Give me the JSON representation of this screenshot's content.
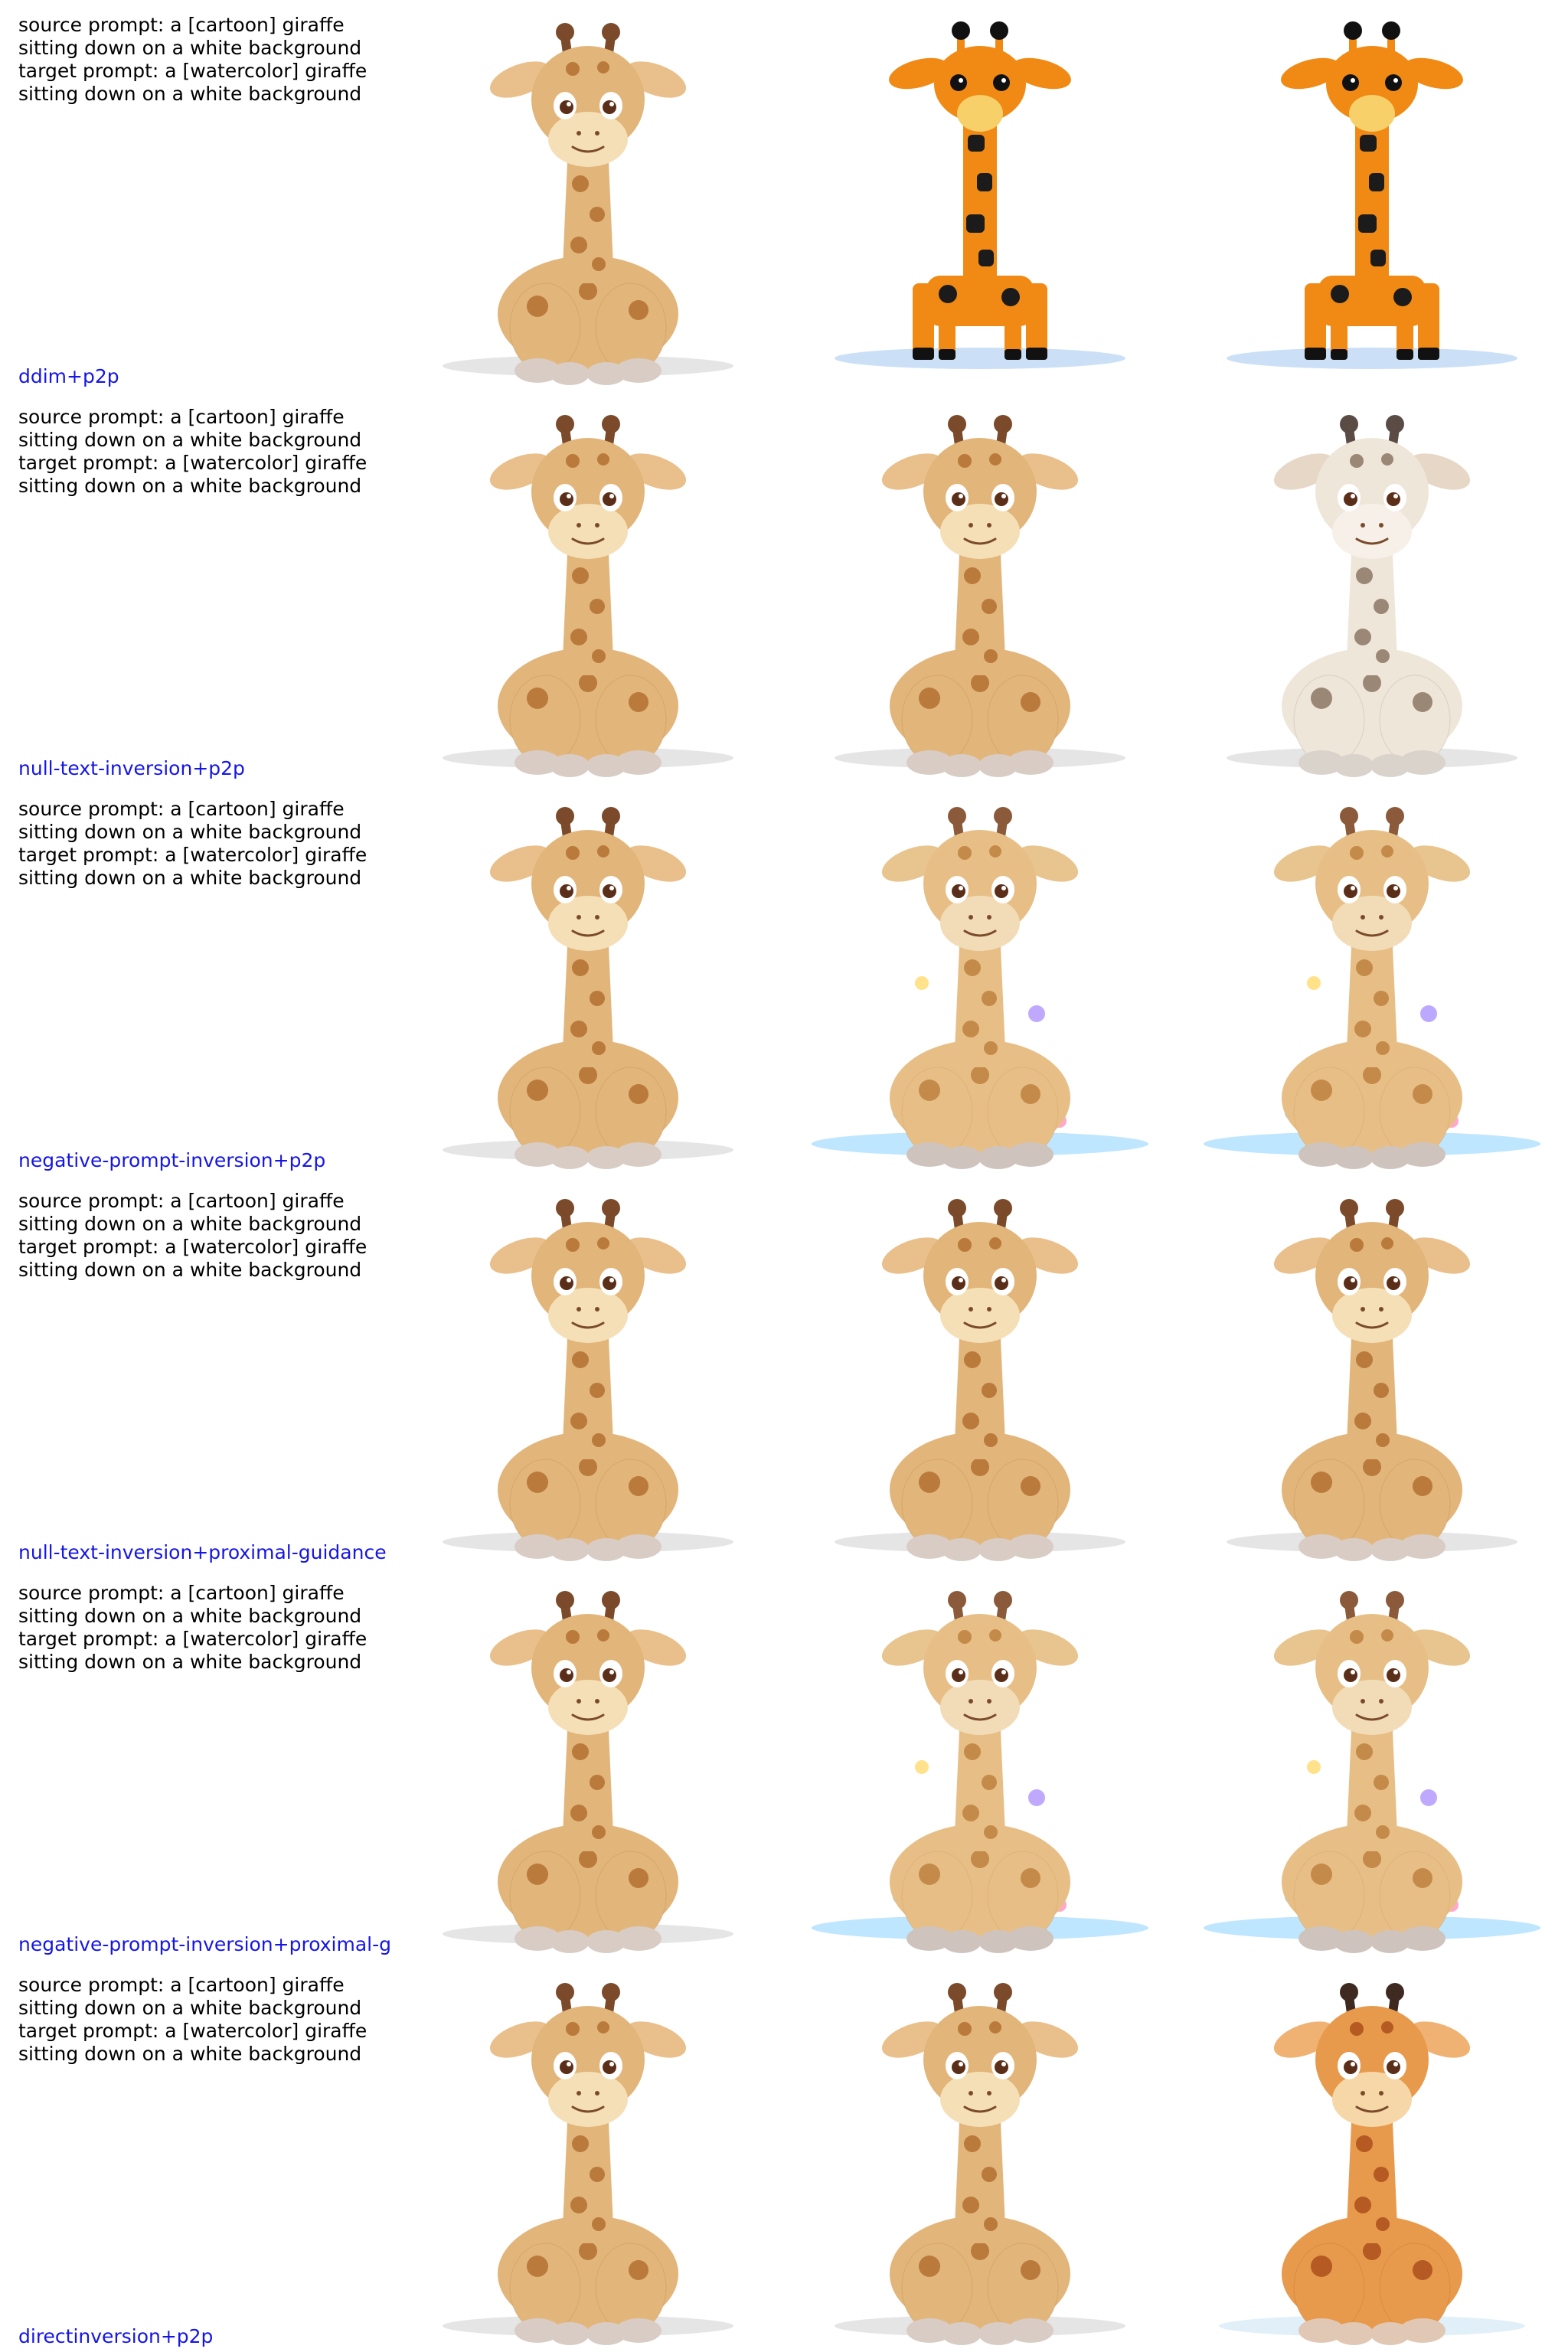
{
  "rows": [
    {
      "prompt": "source prompt: a [cartoon] giraffe\nsitting down on a white background\ntarget prompt: a [watercolor] giraffe\nsitting down on a white background",
      "method": "ddim+p2p",
      "styles": [
        "cartoon",
        "flat",
        "flat"
      ]
    },
    {
      "prompt": "source prompt: a [cartoon] giraffe\nsitting down on a white background\ntarget prompt: a [watercolor] giraffe\nsitting down on a white background",
      "method": "null-text-inversion+p2p",
      "styles": [
        "cartoon",
        "cartoon",
        "sketch"
      ]
    },
    {
      "prompt": "source prompt: a [cartoon] giraffe\nsitting down on a white background\ntarget prompt: a [watercolor] giraffe\nsitting down on a white background",
      "method": "negative-prompt-inversion+p2p",
      "styles": [
        "cartoon",
        "splash",
        "splash"
      ]
    },
    {
      "prompt": "source prompt: a [cartoon] giraffe\nsitting down on a white background\ntarget prompt: a [watercolor] giraffe\nsitting down on a white background",
      "method": "null-text-inversion+proximal-guidance",
      "styles": [
        "cartoon",
        "cartoon",
        "cartoon"
      ]
    },
    {
      "prompt": "source prompt: a [cartoon] giraffe\nsitting down on a white background\ntarget prompt: a [watercolor] giraffe\nsitting down on a white background",
      "method": "negative-prompt-inversion+proximal-g",
      "styles": [
        "cartoon",
        "splash",
        "splash"
      ]
    },
    {
      "prompt": "source prompt: a [cartoon] giraffe\nsitting down on a white background\ntarget prompt: a [watercolor] giraffe\nsitting down on a white background",
      "method": "directinversion+p2p",
      "styles": [
        "cartoon",
        "cartoon",
        "watercolor"
      ]
    }
  ]
}
